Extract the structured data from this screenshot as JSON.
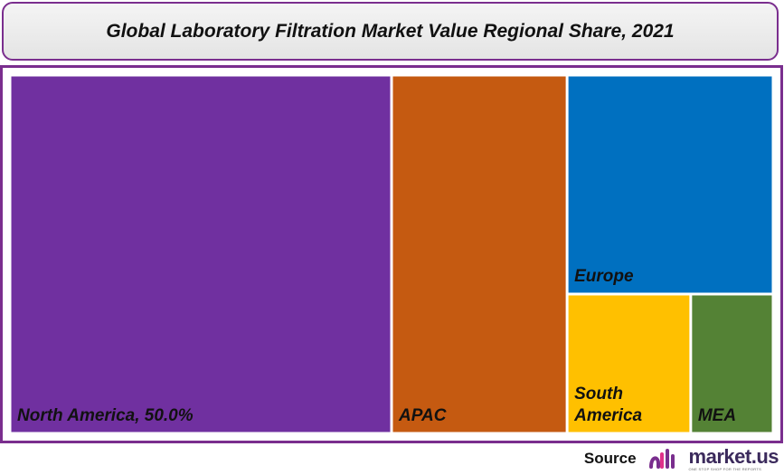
{
  "title": "Global Laboratory Filtration Market Value Regional Share, 2021",
  "source": {
    "label": "Source",
    "brand_name": "market.us",
    "brand_tagline": "ONE STOP SHOP FOR THE REPORTS",
    "logo_icon": "market-us-logo-icon"
  },
  "colors": {
    "frame": "#7a2e8e",
    "north_america": "#7030a0",
    "apac": "#c55a11",
    "europe": "#0070c0",
    "south_america": "#ffc000",
    "mea": "#548235"
  },
  "chart_data": {
    "type": "treemap",
    "title": "Global Laboratory Filtration Market Value Regional Share, 2021",
    "unit": "%",
    "items": [
      {
        "name": "North America",
        "label_lines": [
          "North America, 50.0%"
        ],
        "value": 50.0,
        "color": "#7030a0"
      },
      {
        "name": "APAC",
        "label_lines": [
          "APAC"
        ],
        "value": 23.0,
        "color": "#c55a11"
      },
      {
        "name": "Europe",
        "label_lines": [
          "Europe"
        ],
        "value": 16.5,
        "color": "#0070c0"
      },
      {
        "name": "South America",
        "label_lines": [
          "South",
          "America"
        ],
        "value": 6.3,
        "color": "#ffc000"
      },
      {
        "name": "MEA",
        "label_lines": [
          "MEA"
        ],
        "value": 4.2,
        "color": "#548235"
      }
    ]
  }
}
